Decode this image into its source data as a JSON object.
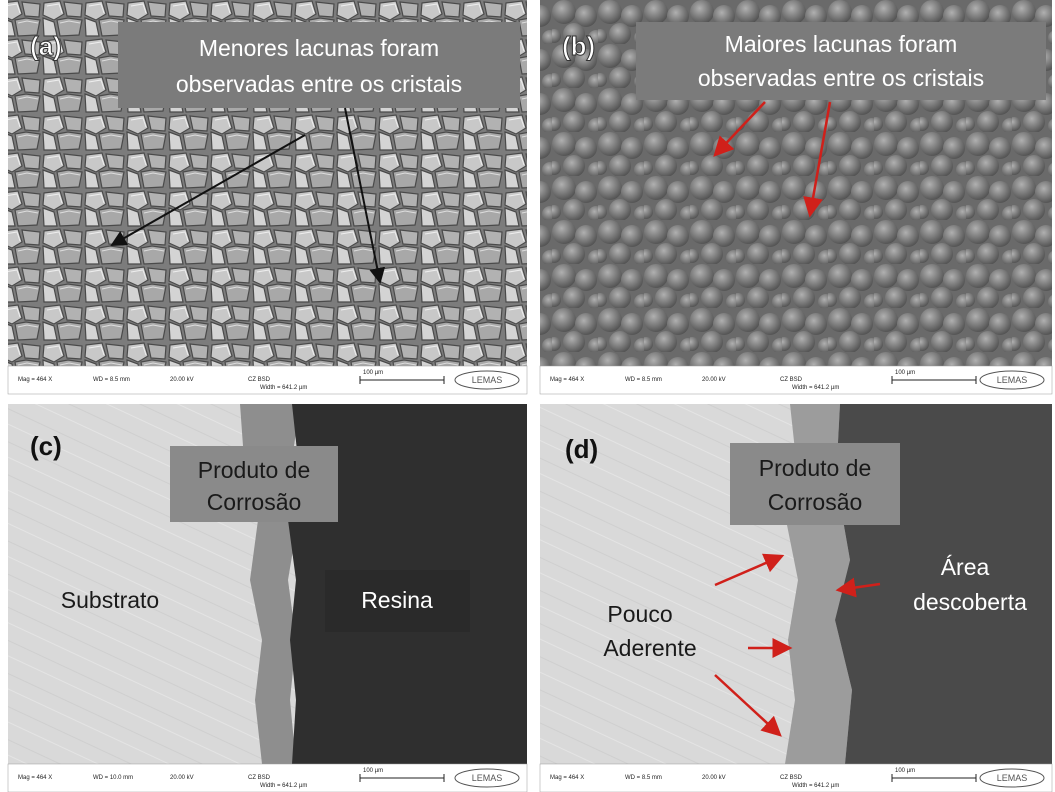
{
  "panels": [
    {
      "label": "(a)",
      "annotations": [
        {
          "lines": [
            "Menores lacunas foram",
            "observadas entre os cristais"
          ]
        }
      ],
      "info": {
        "mag": "Mag = 464 X",
        "wd": "WD = 8.5 mm",
        "kv": "20.00 kV",
        "detector": "CZ BSD",
        "width": "Width = 641.2 µm",
        "scale": "100 µm",
        "logo": "LEMAS"
      }
    },
    {
      "label": "(b)",
      "annotations": [
        {
          "lines": [
            "Maiores lacunas foram",
            "observadas entre os cristais"
          ]
        }
      ],
      "info": {
        "mag": "Mag = 464 X",
        "wd": "WD = 8.5 mm",
        "kv": "20.00 kV",
        "detector": "CZ BSD",
        "width": "Width = 641.2 µm",
        "scale": "100 µm",
        "logo": "LEMAS"
      }
    },
    {
      "label": "(c)",
      "annotations": [
        {
          "lines": [
            "Produto de",
            "Corrosão"
          ]
        },
        {
          "lines": [
            "Substrato"
          ]
        },
        {
          "lines": [
            "Resina"
          ]
        }
      ],
      "info": {
        "mag": "Mag = 464 X",
        "wd": "WD = 10.0 mm",
        "kv": "20.00 kV",
        "detector": "CZ BSD",
        "width": "Width = 641.2 µm",
        "scale": "100 µm",
        "logo": "LEMAS"
      }
    },
    {
      "label": "(d)",
      "annotations": [
        {
          "lines": [
            "Produto de",
            "Corrosão"
          ]
        },
        {
          "lines": [
            "Pouco",
            "Aderente"
          ]
        },
        {
          "lines": [
            "Área",
            "descoberta"
          ]
        }
      ],
      "info": {
        "mag": "Mag = 464 X",
        "wd": "WD = 8.5 mm",
        "kv": "20.00 kV",
        "detector": "CZ BSD",
        "width": "Width = 641.2 µm",
        "scale": "100 µm",
        "logo": "LEMAS"
      }
    }
  ]
}
